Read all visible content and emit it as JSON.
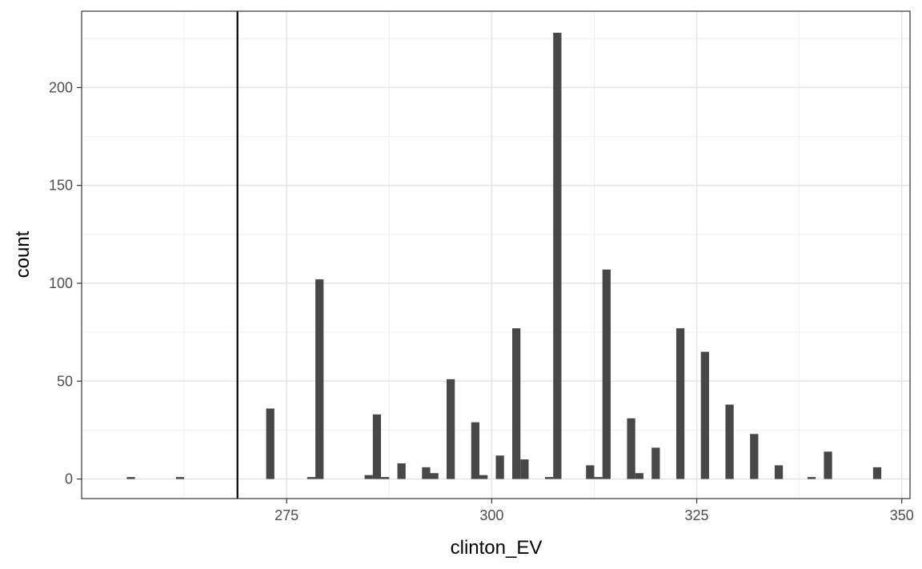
{
  "chart_data": {
    "type": "bar",
    "xlabel": "clinton_EV",
    "ylabel": "count",
    "xlim": [
      250,
      351
    ],
    "ylim": [
      -10,
      239
    ],
    "x_ticks": [
      275,
      300,
      325,
      350
    ],
    "y_ticks": [
      0,
      50,
      100,
      150,
      200
    ],
    "grid": true,
    "bin_width": 1,
    "vline": {
      "x": 269,
      "color": "#000000"
    },
    "bar_color": "#474747",
    "x": [
      256,
      262,
      273,
      278,
      279,
      285,
      286,
      287,
      289,
      292,
      293,
      295,
      298,
      299,
      301,
      303,
      304,
      307,
      308,
      312,
      313,
      314,
      317,
      318,
      320,
      323,
      326,
      329,
      332,
      335,
      339,
      341,
      347
    ],
    "values": [
      1,
      1,
      36,
      1,
      102,
      2,
      33,
      1,
      8,
      6,
      3,
      51,
      29,
      2,
      12,
      77,
      10,
      1,
      228,
      7,
      1,
      107,
      31,
      3,
      16,
      77,
      65,
      38,
      23,
      7,
      1,
      14,
      6
    ]
  }
}
